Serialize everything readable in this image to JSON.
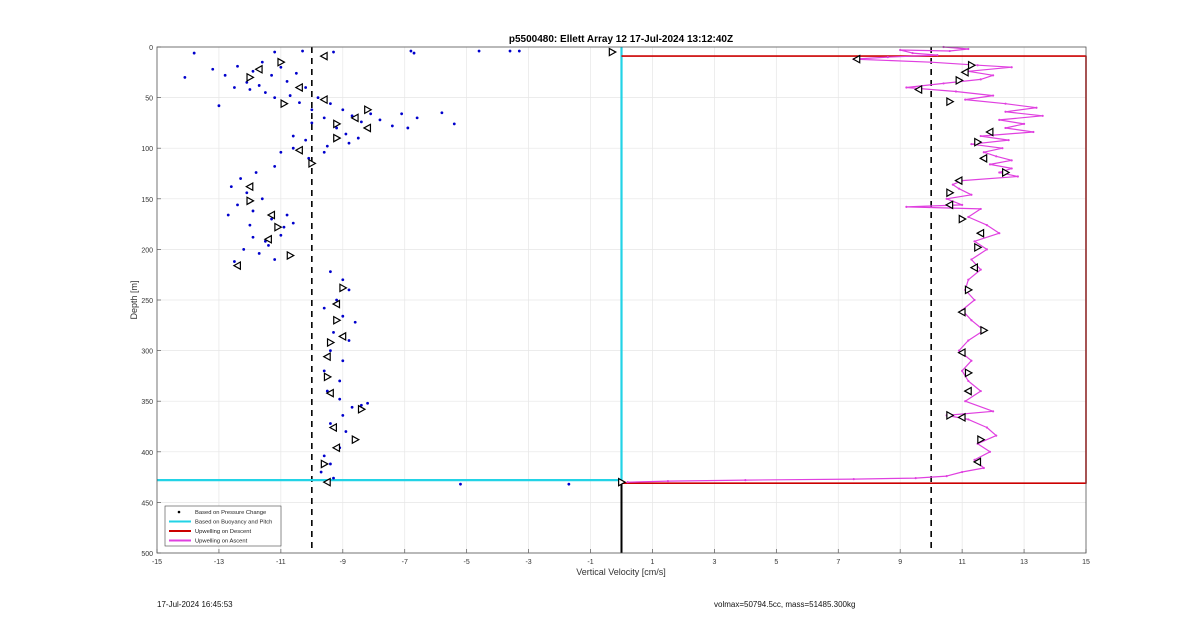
{
  "footer": {
    "timestamp": "17-Jul-2024 16:45:53",
    "mass_info": "volmax=50794.5cc, mass=51485.300kg"
  },
  "chart_data": {
    "type": "scatter",
    "title": "p5500480: Ellett Array 12 17-Jul-2024 13:12:40Z",
    "xlabel": "Vertical Velocity [cm/s]",
    "ylabel": "Depth [m]",
    "xlim": [
      -15,
      15
    ],
    "ylim": [
      0,
      500
    ],
    "y_reversed": true,
    "grid": true,
    "legend_position": "bottom-left",
    "x_ticks": [
      -15,
      -13,
      -11,
      -9,
      -7,
      -5,
      -3,
      -1,
      1,
      3,
      5,
      7,
      9,
      11,
      13,
      15
    ],
    "x_tick_labels": [
      "-15",
      "-13",
      "-11",
      "-9",
      "-7",
      "-5",
      "-3",
      "-1",
      "1",
      "3",
      "5",
      "7",
      "9",
      "11",
      "13",
      "15"
    ],
    "y_ticks": [
      0,
      50,
      100,
      150,
      200,
      250,
      300,
      350,
      400,
      450,
      500
    ],
    "y_tick_labels": [
      "0",
      "50",
      "100",
      "150",
      "200",
      "250",
      "300",
      "350",
      "400",
      "450",
      "500"
    ],
    "colors": {
      "pressure": "#0000cc",
      "buoyancy": "#22d3e6",
      "upwelling_descent": "#cc0000",
      "upwelling_ascent": "#e040e0",
      "reference": "#000000"
    },
    "legend": [
      {
        "label": "Based on Pressure Change",
        "style": "dot",
        "color": "#000000"
      },
      {
        "label": "Based on Buoyancy and Pitch",
        "style": "line",
        "color": "#22d3e6"
      },
      {
        "label": "Upwelling on Descent",
        "style": "line",
        "color": "#cc0000"
      },
      {
        "label": "Upwelling on Ascent",
        "style": "line",
        "color": "#e040e0"
      }
    ],
    "reference_lines": {
      "dashed_x": [
        -10,
        10
      ],
      "zero_line_depth": [
        430,
        500
      ]
    },
    "series": [
      {
        "name": "Based on Pressure Change",
        "kind": "scatter",
        "points": [
          [
            -13.8,
            6
          ],
          [
            -11.2,
            5
          ],
          [
            -10.3,
            4
          ],
          [
            -9.3,
            5
          ],
          [
            -6.8,
            4
          ],
          [
            -6.7,
            6
          ],
          [
            -4.6,
            4
          ],
          [
            -3.6,
            4
          ],
          [
            -3.3,
            4
          ],
          [
            -14.1,
            30
          ],
          [
            -13.2,
            22
          ],
          [
            -12.8,
            28
          ],
          [
            -12.4,
            19
          ],
          [
            -12.1,
            35
          ],
          [
            -11.9,
            24
          ],
          [
            -11.6,
            15
          ],
          [
            -11.3,
            28
          ],
          [
            -11.0,
            20
          ],
          [
            -10.8,
            34
          ],
          [
            -10.5,
            26
          ],
          [
            -10.2,
            40
          ],
          [
            -12.0,
            42
          ],
          [
            -11.5,
            45
          ],
          [
            -13.0,
            58
          ],
          [
            -12.5,
            40
          ],
          [
            -11.7,
            38
          ],
          [
            -11.2,
            50
          ],
          [
            -10.7,
            48
          ],
          [
            -10.4,
            55
          ],
          [
            -10.0,
            62
          ],
          [
            -9.8,
            50
          ],
          [
            -9.4,
            56
          ],
          [
            -9.0,
            62
          ],
          [
            -8.7,
            68
          ],
          [
            -8.4,
            74
          ],
          [
            -8.1,
            66
          ],
          [
            -7.8,
            72
          ],
          [
            -7.4,
            78
          ],
          [
            -7.1,
            66
          ],
          [
            -6.9,
            80
          ],
          [
            -6.6,
            70
          ],
          [
            -5.8,
            65
          ],
          [
            -5.4,
            76
          ],
          [
            -9.2,
            80
          ],
          [
            -8.9,
            86
          ],
          [
            -8.5,
            90
          ],
          [
            -8.8,
            95
          ],
          [
            -9.5,
            98
          ],
          [
            -10.2,
            92
          ],
          [
            -10.6,
            100
          ],
          [
            -11.0,
            104
          ],
          [
            -10.1,
            110
          ],
          [
            -9.6,
            104
          ],
          [
            -10.6,
            88
          ],
          [
            -10.0,
            75
          ],
          [
            -9.6,
            70
          ],
          [
            -11.2,
            118
          ],
          [
            -11.8,
            124
          ],
          [
            -12.3,
            130
          ],
          [
            -12.6,
            138
          ],
          [
            -12.1,
            144
          ],
          [
            -11.6,
            150
          ],
          [
            -12.4,
            156
          ],
          [
            -11.9,
            162
          ],
          [
            -11.3,
            170
          ],
          [
            -10.9,
            178
          ],
          [
            -10.6,
            174
          ],
          [
            -11.0,
            186
          ],
          [
            -11.5,
            192
          ],
          [
            -11.9,
            188
          ],
          [
            -12.2,
            200
          ],
          [
            -11.7,
            204
          ],
          [
            -11.2,
            210
          ],
          [
            -12.5,
            212
          ],
          [
            -12.7,
            166
          ],
          [
            -12.0,
            176
          ],
          [
            -11.4,
            196
          ],
          [
            -10.8,
            166
          ],
          [
            -9.4,
            222
          ],
          [
            -9.0,
            230
          ],
          [
            -8.8,
            240
          ],
          [
            -9.2,
            250
          ],
          [
            -9.6,
            258
          ],
          [
            -9.0,
            266
          ],
          [
            -8.6,
            272
          ],
          [
            -9.3,
            282
          ],
          [
            -8.8,
            290
          ],
          [
            -9.4,
            300
          ],
          [
            -9.0,
            310
          ],
          [
            -9.6,
            320
          ],
          [
            -9.1,
            330
          ],
          [
            -9.5,
            340
          ],
          [
            -9.1,
            348
          ],
          [
            -8.7,
            356
          ],
          [
            -8.4,
            354
          ],
          [
            -8.2,
            352
          ],
          [
            -9.0,
            364
          ],
          [
            -9.4,
            372
          ],
          [
            -8.9,
            380
          ],
          [
            -8.6,
            388
          ],
          [
            -9.1,
            396
          ],
          [
            -9.6,
            404
          ],
          [
            -9.4,
            412
          ],
          [
            -9.7,
            420
          ],
          [
            -9.3,
            426
          ],
          [
            -9.5,
            430
          ],
          [
            -5.2,
            432
          ],
          [
            -1.7,
            432
          ]
        ]
      },
      {
        "name": "Pressure markers",
        "kind": "triangles",
        "points": [
          [
            -9.6,
            9
          ],
          [
            -11.0,
            15
          ],
          [
            -11.7,
            22
          ],
          [
            -12.0,
            30
          ],
          [
            -10.4,
            40
          ],
          [
            -10.9,
            56
          ],
          [
            -9.6,
            52
          ],
          [
            -8.2,
            62
          ],
          [
            -8.6,
            70
          ],
          [
            -9.2,
            76
          ],
          [
            -8.2,
            80
          ],
          [
            -9.2,
            90
          ],
          [
            -10.4,
            102
          ],
          [
            -10.0,
            115
          ],
          [
            -12.0,
            138
          ],
          [
            -12.0,
            152
          ],
          [
            -11.3,
            166
          ],
          [
            -11.1,
            178
          ],
          [
            -11.4,
            190
          ],
          [
            -10.7,
            206
          ],
          [
            -12.4,
            216
          ],
          [
            -9.0,
            238
          ],
          [
            -9.2,
            254
          ],
          [
            -9.2,
            270
          ],
          [
            -9.0,
            286
          ],
          [
            -9.4,
            292
          ],
          [
            -9.5,
            306
          ],
          [
            -9.5,
            326
          ],
          [
            -9.4,
            342
          ],
          [
            -8.4,
            358
          ],
          [
            -9.3,
            376
          ],
          [
            -8.6,
            388
          ],
          [
            -9.2,
            396
          ],
          [
            -9.6,
            412
          ],
          [
            -9.5,
            430
          ],
          [
            -0.3,
            5
          ]
        ]
      },
      {
        "name": "Based on Buoyancy and Pitch",
        "kind": "line",
        "points": [
          [
            0,
            0
          ],
          [
            0,
            428
          ],
          [
            -15,
            428
          ]
        ]
      },
      {
        "name": "Upwelling on Descent",
        "kind": "line",
        "points": [
          [
            0,
            9
          ],
          [
            15,
            9
          ],
          [
            15,
            431
          ],
          [
            0,
            431
          ]
        ]
      },
      {
        "name": "Upwelling on Ascent",
        "kind": "line",
        "points": [
          [
            10.4,
            0
          ],
          [
            11.2,
            2
          ],
          [
            10.6,
            4
          ],
          [
            9.0,
            3
          ],
          [
            9.4,
            6
          ],
          [
            10.2,
            8
          ],
          [
            8.6,
            10
          ],
          [
            7.5,
            12
          ],
          [
            10.0,
            15
          ],
          [
            11.5,
            18
          ],
          [
            12.6,
            20
          ],
          [
            11.2,
            24
          ],
          [
            12.0,
            28
          ],
          [
            11.6,
            32
          ],
          [
            10.4,
            36
          ],
          [
            9.2,
            40
          ],
          [
            10.8,
            44
          ],
          [
            12.0,
            48
          ],
          [
            11.1,
            52
          ],
          [
            12.4,
            56
          ],
          [
            13.4,
            60
          ],
          [
            12.4,
            64
          ],
          [
            13.6,
            68
          ],
          [
            12.2,
            72
          ],
          [
            13.0,
            76
          ],
          [
            12.4,
            80
          ],
          [
            13.3,
            84
          ],
          [
            11.6,
            88
          ],
          [
            12.5,
            92
          ],
          [
            11.3,
            96
          ],
          [
            12.3,
            100
          ],
          [
            11.7,
            104
          ],
          [
            12.1,
            108
          ],
          [
            12.6,
            112
          ],
          [
            11.9,
            116
          ],
          [
            12.6,
            120
          ],
          [
            12.2,
            124
          ],
          [
            12.8,
            128
          ],
          [
            11.0,
            132
          ],
          [
            10.7,
            136
          ],
          [
            10.9,
            140
          ],
          [
            11.3,
            146
          ],
          [
            10.5,
            150
          ],
          [
            11.0,
            156
          ],
          [
            9.2,
            158
          ],
          [
            11.6,
            160
          ],
          [
            11.2,
            168
          ],
          [
            11.8,
            176
          ],
          [
            12.2,
            184
          ],
          [
            11.4,
            192
          ],
          [
            11.8,
            200
          ],
          [
            11.3,
            210
          ],
          [
            11.6,
            220
          ],
          [
            11.2,
            230
          ],
          [
            11.1,
            240
          ],
          [
            11.4,
            250
          ],
          [
            11.0,
            260
          ],
          [
            11.3,
            270
          ],
          [
            11.7,
            280
          ],
          [
            11.2,
            290
          ],
          [
            10.9,
            300
          ],
          [
            11.3,
            310
          ],
          [
            11.0,
            320
          ],
          [
            11.2,
            330
          ],
          [
            11.6,
            340
          ],
          [
            11.1,
            350
          ],
          [
            12.0,
            360
          ],
          [
            10.5,
            364
          ],
          [
            11.2,
            368
          ],
          [
            11.8,
            376
          ],
          [
            12.1,
            384
          ],
          [
            11.5,
            392
          ],
          [
            11.9,
            400
          ],
          [
            11.4,
            408
          ],
          [
            11.7,
            416
          ],
          [
            11.0,
            420
          ],
          [
            10.5,
            424
          ],
          [
            9.5,
            426
          ],
          [
            7.5,
            427
          ],
          [
            4.0,
            428
          ],
          [
            1.5,
            429
          ],
          [
            0.2,
            430
          ]
        ]
      },
      {
        "name": "Ascent markers",
        "kind": "triangles",
        "points": [
          [
            7.6,
            12
          ],
          [
            11.3,
            18
          ],
          [
            11.1,
            25
          ],
          [
            10.9,
            33
          ],
          [
            9.6,
            42
          ],
          [
            10.6,
            54
          ],
          [
            11.9,
            84
          ],
          [
            11.5,
            94
          ],
          [
            11.7,
            110
          ],
          [
            12.4,
            124
          ],
          [
            10.9,
            132
          ],
          [
            10.6,
            144
          ],
          [
            10.6,
            156
          ],
          [
            11.0,
            170
          ],
          [
            11.6,
            184
          ],
          [
            11.5,
            198
          ],
          [
            11.4,
            218
          ],
          [
            11.2,
            240
          ],
          [
            11.0,
            262
          ],
          [
            11.7,
            280
          ],
          [
            11.0,
            302
          ],
          [
            11.2,
            322
          ],
          [
            11.2,
            340
          ],
          [
            10.6,
            364
          ],
          [
            11.0,
            366
          ],
          [
            11.6,
            388
          ],
          [
            11.5,
            410
          ],
          [
            0,
            430
          ]
        ]
      }
    ]
  }
}
